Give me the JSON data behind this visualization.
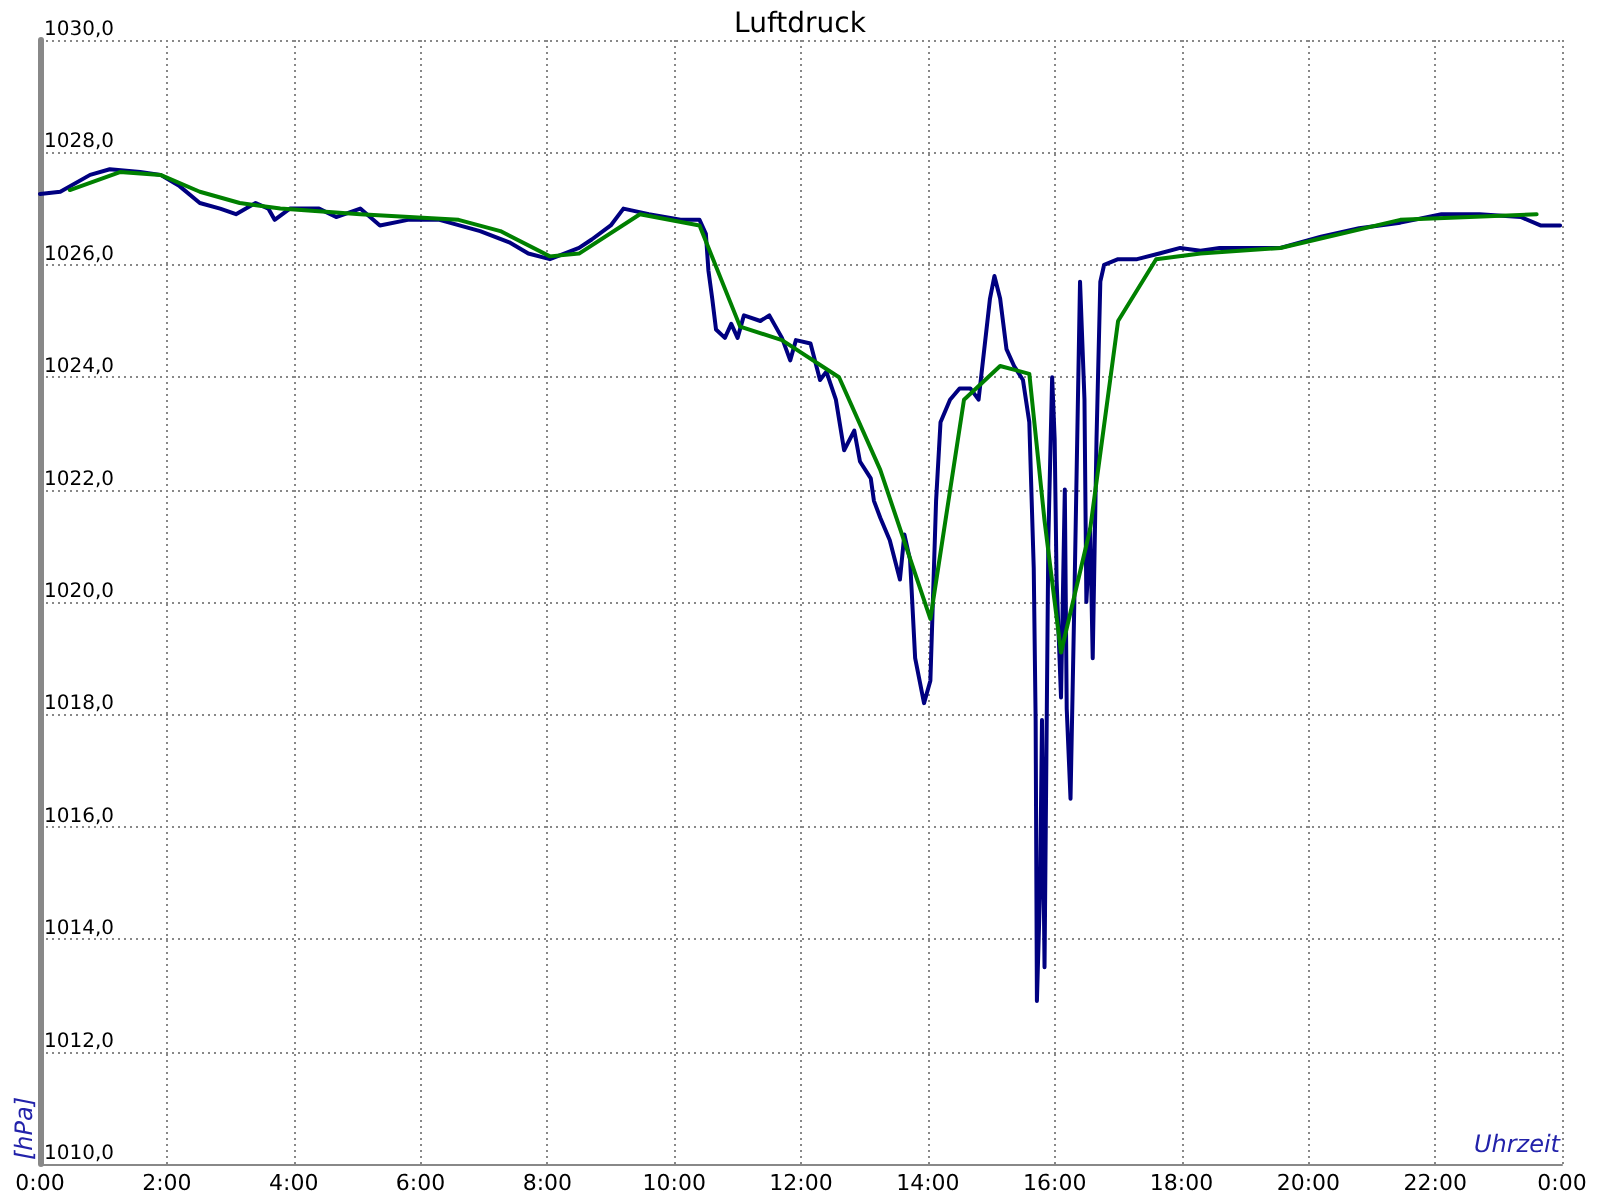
{
  "chart_data": {
    "type": "line",
    "title": "Luftdruck",
    "xlabel": "Uhrzeit",
    "ylabel": "[hPa]",
    "xlim": [
      0,
      24
    ],
    "xticks": [
      {
        "value": 0,
        "label": "0:00"
      },
      {
        "value": 2,
        "label": "2:00"
      },
      {
        "value": 4,
        "label": "4:00"
      },
      {
        "value": 6,
        "label": "6:00"
      },
      {
        "value": 8,
        "label": "8:00"
      },
      {
        "value": 10,
        "label": "10:00"
      },
      {
        "value": 12,
        "label": "12:00"
      },
      {
        "value": 14,
        "label": "14:00"
      },
      {
        "value": 16,
        "label": "16:00"
      },
      {
        "value": 18,
        "label": "18:00"
      },
      {
        "value": 20,
        "label": "20:00"
      },
      {
        "value": 22,
        "label": "22:00"
      },
      {
        "value": 24,
        "label": "0:00"
      }
    ],
    "ylim": [
      1010,
      1030
    ],
    "yticks": [
      {
        "value": 1010,
        "label": "1010,0"
      },
      {
        "value": 1012,
        "label": "1012,0"
      },
      {
        "value": 1014,
        "label": "1014,0"
      },
      {
        "value": 1016,
        "label": "1016,0"
      },
      {
        "value": 1018,
        "label": "1018,0"
      },
      {
        "value": 1020,
        "label": "1020,0"
      },
      {
        "value": 1022,
        "label": "1022,0"
      },
      {
        "value": 1024,
        "label": "1024,0"
      },
      {
        "value": 1026,
        "label": "1026,0"
      },
      {
        "value": 1028,
        "label": "1028,0"
      },
      {
        "value": 1030,
        "label": "1030,0"
      }
    ],
    "grid": true,
    "marker": "none",
    "line_style": "solid",
    "series": [
      {
        "color": "#000080",
        "x": [
          0,
          0.32,
          0.79,
          1.1,
          1.58,
          1.9,
          2.2,
          2.52,
          2.84,
          3.09,
          3.4,
          3.6,
          3.7,
          3.94,
          4.4,
          4.67,
          5.05,
          5.36,
          5.8,
          6.3,
          6.94,
          7.4,
          7.7,
          8.04,
          8.5,
          8.7,
          9.0,
          9.2,
          9.4,
          9.6,
          10.1,
          10.4,
          10.5,
          10.54,
          10.6,
          10.66,
          10.8,
          10.9,
          11.0,
          11.1,
          11.36,
          11.5,
          11.7,
          11.83,
          11.92,
          12.15,
          12.3,
          12.4,
          12.55,
          12.68,
          12.84,
          12.93,
          13.1,
          13.15,
          13.25,
          13.4,
          13.56,
          13.63,
          13.72,
          13.8,
          13.94,
          14.04,
          14.13,
          14.2,
          14.35,
          14.5,
          14.67,
          14.8,
          14.98,
          15.05,
          15.14,
          15.24,
          15.36,
          15.5,
          15.6,
          15.67,
          15.7,
          15.72,
          15.77,
          15.8,
          15.84,
          15.9,
          15.96,
          16.0,
          16.03,
          16.1,
          16.16,
          16.19,
          16.25,
          16.31,
          16.4,
          16.47,
          16.5,
          16.56,
          16.6,
          16.66,
          16.72,
          16.78,
          17.0,
          17.3,
          17.65,
          17.98,
          18.3,
          18.6,
          18.9,
          19.56,
          20.2,
          20.8,
          21.45,
          22.1,
          22.7,
          23.35,
          23.66,
          23.97
        ],
        "values": [
          1027.26,
          1027.3,
          1027.6,
          1027.7,
          1027.65,
          1027.6,
          1027.4,
          1027.1,
          1027.0,
          1026.9,
          1027.1,
          1027.0,
          1026.8,
          1027.0,
          1027.0,
          1026.85,
          1027.0,
          1026.7,
          1026.8,
          1026.8,
          1026.6,
          1026.4,
          1026.2,
          1026.1,
          1026.3,
          1026.45,
          1026.7,
          1027.0,
          1026.95,
          1026.9,
          1026.8,
          1026.8,
          1026.55,
          1025.9,
          1025.4,
          1024.85,
          1024.7,
          1024.95,
          1024.7,
          1025.1,
          1025.0,
          1025.1,
          1024.7,
          1024.3,
          1024.66,
          1024.6,
          1023.95,
          1024.1,
          1023.6,
          1022.7,
          1023.05,
          1022.5,
          1022.2,
          1021.8,
          1021.5,
          1021.1,
          1020.4,
          1021.2,
          1020.75,
          1019.0,
          1018.2,
          1018.6,
          1021.8,
          1023.2,
          1023.6,
          1023.8,
          1023.8,
          1023.6,
          1025.4,
          1025.8,
          1025.4,
          1024.5,
          1024.2,
          1023.95,
          1023.2,
          1020.6,
          1017.9,
          1012.9,
          1014.9,
          1017.9,
          1013.5,
          1021.1,
          1024.0,
          1022.9,
          1020.4,
          1018.3,
          1022.0,
          1018.1,
          1016.5,
          1020.0,
          1025.7,
          1023.6,
          1020.0,
          1021.3,
          1019.0,
          1022.9,
          1025.7,
          1026.0,
          1026.1,
          1026.1,
          1026.2,
          1026.3,
          1026.25,
          1026.3,
          1026.3,
          1026.3,
          1026.5,
          1026.65,
          1026.75,
          1026.9,
          1026.9,
          1026.85,
          1026.7,
          1026.7
        ]
      },
      {
        "color": "#008000",
        "x": [
          0.47,
          1.26,
          1.9,
          2.52,
          3.15,
          3.79,
          5.05,
          6.6,
          7.26,
          8.04,
          8.5,
          9.46,
          10.4,
          11.04,
          11.7,
          12.6,
          13.25,
          14.04,
          14.57,
          15.14,
          15.6,
          15.84,
          16.1,
          16.56,
          17.0,
          17.6,
          18.3,
          19.56,
          21.45,
          23.6
        ],
        "values": [
          1027.33,
          1027.65,
          1027.6,
          1027.3,
          1027.1,
          1027.0,
          1026.9,
          1026.8,
          1026.6,
          1026.15,
          1026.2,
          1026.9,
          1026.7,
          1024.9,
          1024.66,
          1024.0,
          1022.35,
          1019.7,
          1023.6,
          1024.2,
          1024.06,
          1021.45,
          1019.1,
          1021.3,
          1025.0,
          1026.1,
          1026.2,
          1026.3,
          1026.8,
          1026.9
        ]
      }
    ]
  }
}
